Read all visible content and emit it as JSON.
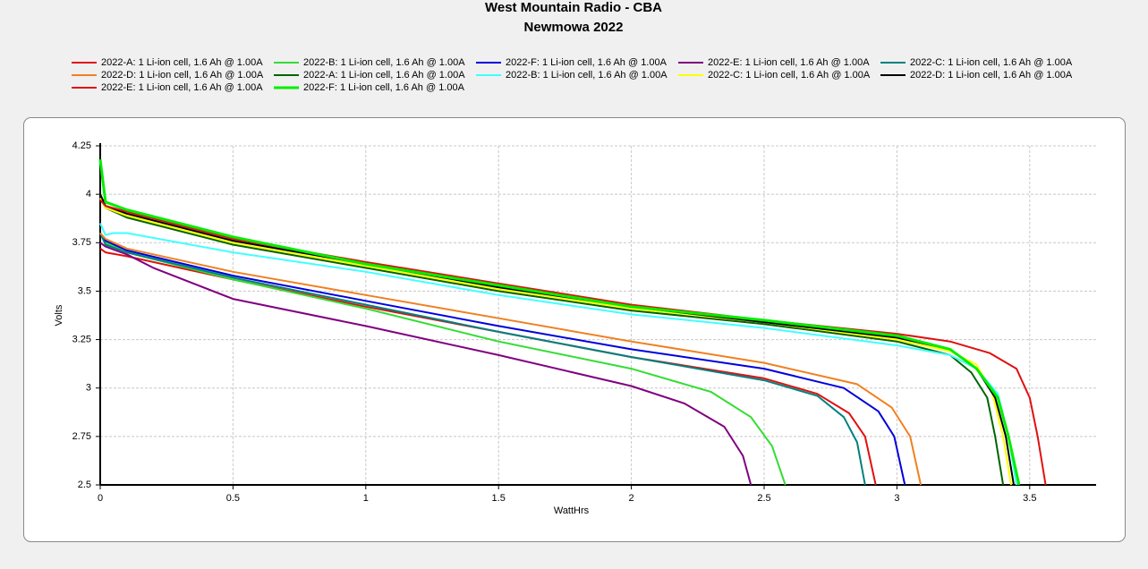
{
  "chart_data": {
    "type": "line",
    "title": "West Mountain Radio - CBA",
    "subtitle": "Newmowa 2022",
    "x_label": "WattHrs",
    "y_label": "Volts",
    "xlim": [
      0,
      3.75
    ],
    "ylim": [
      2.5,
      4.25
    ],
    "xticks": [
      0,
      0.5,
      1,
      1.5,
      2,
      2.5,
      3,
      3.5
    ],
    "yticks": [
      2.5,
      2.75,
      3,
      3.25,
      3.5,
      3.75,
      4,
      4.25
    ],
    "grid": true,
    "series": [
      {
        "name": "2022-A: 1 Li-ion cell, 1.6 Ah @ 1.00A",
        "color": "#e01010",
        "x": [
          0,
          0.02,
          0.1,
          0.5,
          1,
          1.5,
          2,
          2.5,
          2.7,
          2.82,
          2.88,
          2.92
        ],
        "values": [
          3.72,
          3.7,
          3.68,
          3.56,
          3.42,
          3.29,
          3.16,
          3.05,
          2.97,
          2.87,
          2.75,
          2.5
        ]
      },
      {
        "name": "2022-B: 1 Li-ion cell, 1.6 Ah @ 1.00A",
        "color": "#33dd33",
        "x": [
          0,
          0.02,
          0.1,
          0.5,
          1,
          1.5,
          2,
          2.3,
          2.45,
          2.53,
          2.58
        ],
        "values": [
          3.8,
          3.75,
          3.7,
          3.56,
          3.41,
          3.24,
          3.1,
          2.98,
          2.85,
          2.7,
          2.5
        ]
      },
      {
        "name": "2022-F: 1 Li-ion cell, 1.6 Ah @ 1.00A",
        "color": "#0000dd",
        "x": [
          0,
          0.02,
          0.1,
          0.5,
          1,
          1.5,
          2,
          2.5,
          2.8,
          2.93,
          2.99,
          3.03
        ],
        "values": [
          3.8,
          3.76,
          3.71,
          3.58,
          3.45,
          3.32,
          3.2,
          3.1,
          3.0,
          2.88,
          2.75,
          2.5
        ]
      },
      {
        "name": "2022-E: 1 Li-ion cell, 1.6 Ah @ 1.00A",
        "color": "#800080",
        "x": [
          0,
          0.02,
          0.1,
          0.2,
          0.5,
          1,
          1.5,
          2,
          2.2,
          2.35,
          2.42,
          2.45
        ],
        "values": [
          3.75,
          3.73,
          3.69,
          3.62,
          3.46,
          3.32,
          3.17,
          3.01,
          2.92,
          2.8,
          2.65,
          2.5
        ]
      },
      {
        "name": "2022-C: 1 Li-ion cell, 1.6 Ah @ 1.00A",
        "color": "#008080",
        "x": [
          0,
          0.02,
          0.1,
          0.5,
          1,
          1.5,
          2,
          2.5,
          2.7,
          2.8,
          2.85,
          2.88
        ],
        "values": [
          3.8,
          3.74,
          3.7,
          3.57,
          3.43,
          3.29,
          3.16,
          3.04,
          2.96,
          2.85,
          2.72,
          2.5
        ]
      },
      {
        "name": "2022-D: 1 Li-ion cell, 1.6 Ah @ 1.00A",
        "color": "#f08020",
        "x": [
          0,
          0.02,
          0.1,
          0.5,
          1,
          1.5,
          2,
          2.5,
          2.85,
          2.98,
          3.05,
          3.09
        ],
        "values": [
          3.8,
          3.77,
          3.72,
          3.6,
          3.48,
          3.36,
          3.24,
          3.13,
          3.02,
          2.9,
          2.75,
          2.5
        ]
      },
      {
        "name": "2022-A: 1 Li-ion cell, 1.6 Ah @ 1.00A",
        "color": "#006400",
        "x": [
          0,
          0.02,
          0.1,
          0.5,
          1,
          1.5,
          2,
          2.5,
          3,
          3.2,
          3.28,
          3.34,
          3.37,
          3.4
        ],
        "values": [
          3.98,
          3.93,
          3.88,
          3.74,
          3.62,
          3.5,
          3.4,
          3.33,
          3.24,
          3.17,
          3.08,
          2.95,
          2.75,
          2.5
        ]
      },
      {
        "name": "2022-B: 1 Li-ion cell, 1.6 Ah @ 1.00A",
        "color": "#40ffff",
        "x": [
          0,
          0.02,
          0.05,
          0.1,
          0.5,
          1,
          1.5,
          2,
          2.5,
          3,
          3.2,
          3.3,
          3.38,
          3.42,
          3.45
        ],
        "values": [
          3.85,
          3.79,
          3.8,
          3.8,
          3.7,
          3.6,
          3.48,
          3.38,
          3.31,
          3.22,
          3.17,
          3.1,
          2.97,
          2.75,
          2.5
        ]
      },
      {
        "name": "2022-C: 1 Li-ion cell, 1.6 Ah @ 1.00A",
        "color": "#ffff00",
        "x": [
          0,
          0.02,
          0.1,
          0.5,
          1,
          1.5,
          2,
          2.5,
          3,
          3.2,
          3.3,
          3.36,
          3.4,
          3.43
        ],
        "values": [
          3.98,
          3.93,
          3.89,
          3.75,
          3.63,
          3.51,
          3.41,
          3.34,
          3.25,
          3.19,
          3.12,
          2.97,
          2.75,
          2.5
        ]
      },
      {
        "name": "2022-D: 1 Li-ion cell, 1.6 Ah @ 1.00A",
        "color": "#000000",
        "x": [
          0,
          0.02,
          0.1,
          0.5,
          1,
          1.5,
          2,
          2.5,
          3,
          3.2,
          3.3,
          3.37,
          3.41,
          3.44
        ],
        "values": [
          4.0,
          3.94,
          3.9,
          3.76,
          3.64,
          3.52,
          3.42,
          3.34,
          3.26,
          3.2,
          3.1,
          2.95,
          2.75,
          2.5
        ]
      },
      {
        "name": "2022-E: 1 Li-ion cell, 1.6 Ah @ 1.00A",
        "color": "#e01010",
        "x": [
          0,
          0.02,
          0.1,
          0.5,
          1,
          1.5,
          2,
          2.5,
          3,
          3.2,
          3.35,
          3.45,
          3.5,
          3.53,
          3.56
        ],
        "values": [
          3.97,
          3.94,
          3.91,
          3.77,
          3.65,
          3.54,
          3.43,
          3.35,
          3.28,
          3.24,
          3.18,
          3.1,
          2.95,
          2.75,
          2.5
        ]
      },
      {
        "name": "2022-F: 1 Li-ion cell, 1.6 Ah @ 1.00A",
        "color": "#00ee00",
        "x": [
          0,
          0.02,
          0.1,
          0.5,
          1,
          1.5,
          2,
          2.5,
          3,
          3.2,
          3.3,
          3.38,
          3.42,
          3.46
        ],
        "values": [
          4.18,
          3.96,
          3.92,
          3.78,
          3.64,
          3.53,
          3.42,
          3.35,
          3.27,
          3.2,
          3.1,
          2.95,
          2.75,
          2.5
        ]
      }
    ]
  }
}
